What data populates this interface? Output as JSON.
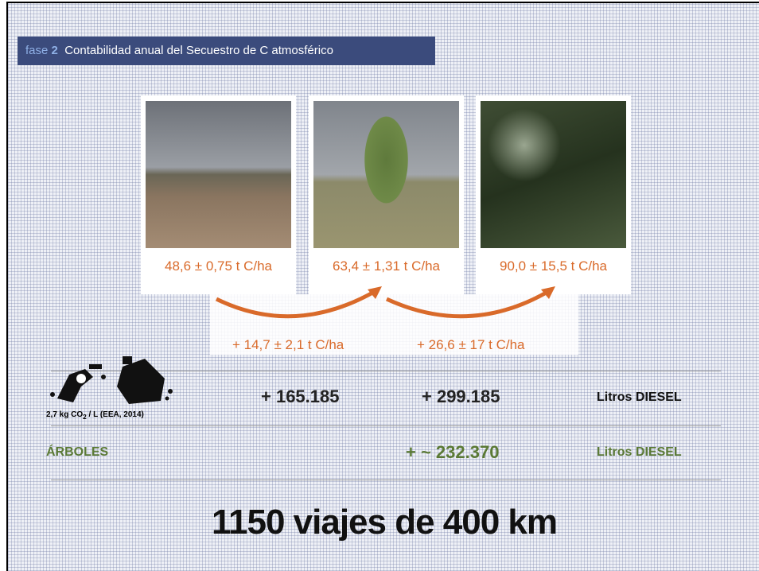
{
  "header": {
    "phase_label": "fase",
    "phase_number": "2",
    "title": "Contabilidad anual del Secuestro de C atmosférico"
  },
  "photos": [
    {
      "label": "48,6 ± 0,75 t C/ha"
    },
    {
      "label": "63,4 ± 1,31 t C/ha"
    },
    {
      "label": "90,0 ± 15,5 t C/ha"
    }
  ],
  "increments": [
    "+ 14,7 ± 2,1 t C/ha",
    "+ 26,6 ± 17 t C/ha"
  ],
  "diesel_row": {
    "note_prefix": "2,7 kg CO",
    "note_subscript": "2",
    "note_suffix": " / L (EEA, 2014)",
    "values": [
      "+ 165.185",
      "+ 299.185"
    ],
    "unit": "Litros DIESEL"
  },
  "trees_row": {
    "label": "ÁRBOLES",
    "value": "+ ~ 232.370",
    "unit": "Litros DIESEL"
  },
  "summary": "1150 viajes de 400 km"
}
